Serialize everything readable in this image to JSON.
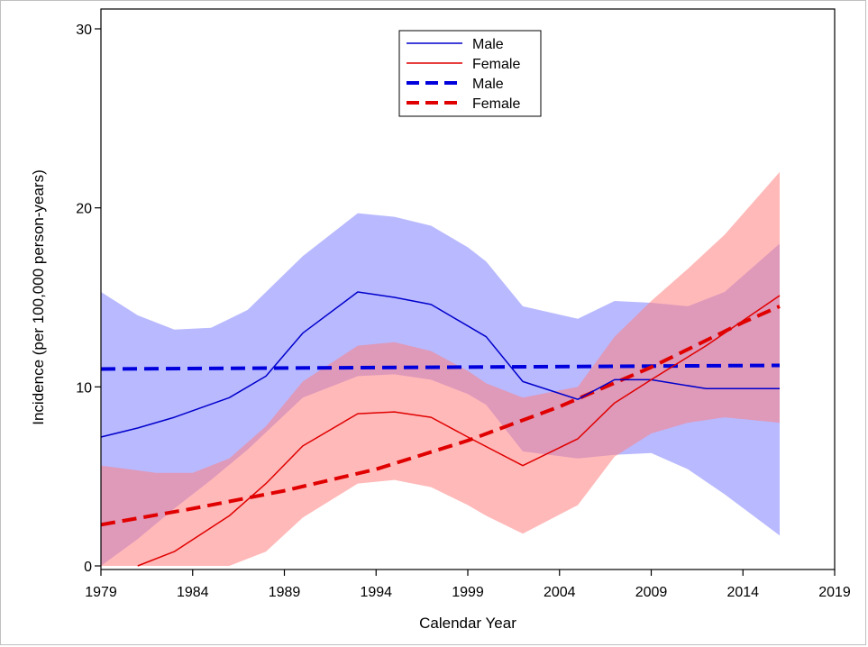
{
  "chart_data": {
    "type": "line",
    "title": "",
    "xlabel": "Calendar Year",
    "ylabel": "Incidence (per 100,000 person-years)",
    "xlim": [
      1979,
      2019
    ],
    "ylim": [
      0,
      30
    ],
    "x_ticks": [
      "1979",
      "1984",
      "1989",
      "1994",
      "1999",
      "2004",
      "2009",
      "2014",
      "2019"
    ],
    "y_ticks": [
      "0",
      "10",
      "20",
      "30"
    ],
    "legend_position": "top-center",
    "grid": false,
    "bands": [
      {
        "name": "Male",
        "color": "#8080ff",
        "x": [
          1979,
          1981,
          1983,
          1985,
          1987,
          1990,
          1993,
          1995,
          1997,
          1999,
          2000,
          2002,
          2005,
          2007,
          2009,
          2011,
          2013,
          2016
        ],
        "upper": [
          15.3,
          14.0,
          13.2,
          13.3,
          14.3,
          17.3,
          19.7,
          19.5,
          19.0,
          17.8,
          17.0,
          14.5,
          13.8,
          14.8,
          14.7,
          14.5,
          15.3,
          18.0
        ],
        "lower": [
          0.0,
          1.5,
          3.2,
          4.8,
          6.5,
          9.4,
          10.6,
          10.7,
          10.4,
          9.6,
          9.0,
          6.4,
          6.0,
          6.2,
          6.3,
          5.4,
          4.0,
          1.7
        ]
      },
      {
        "name": "Female",
        "color": "#ff8080",
        "x": [
          1979,
          1982,
          1984,
          1986,
          1988,
          1990,
          1993,
          1995,
          1997,
          1999,
          2000,
          2002,
          2005,
          2007,
          2009,
          2011,
          2013,
          2016
        ],
        "upper": [
          5.6,
          5.2,
          5.2,
          6.0,
          7.8,
          10.3,
          12.3,
          12.5,
          12.0,
          10.9,
          10.2,
          9.4,
          10.0,
          12.8,
          14.8,
          16.6,
          18.5,
          22.0
        ],
        "lower": [
          0.0,
          0.0,
          0.0,
          0.0,
          0.8,
          2.7,
          4.6,
          4.8,
          4.4,
          3.4,
          2.8,
          1.8,
          3.4,
          6.1,
          7.4,
          8.0,
          8.3,
          8.0
        ]
      }
    ],
    "series": [
      {
        "name": "Male",
        "style": "solid",
        "color": "#0000cc",
        "x": [
          1979,
          1981,
          1983,
          1986,
          1988,
          1990,
          1993,
          1995,
          1997,
          2000,
          2002,
          2005,
          2007,
          2009,
          2012,
          2016
        ],
        "values": [
          7.2,
          7.7,
          8.3,
          9.4,
          10.6,
          13.0,
          15.3,
          15.0,
          14.6,
          12.8,
          10.3,
          9.3,
          10.4,
          10.4,
          9.9,
          9.9
        ]
      },
      {
        "name": "Female",
        "style": "solid",
        "color": "#e00000",
        "x": [
          1981,
          1983,
          1986,
          1988,
          1990,
          1993,
          1995,
          1997,
          1999,
          2002,
          2005,
          2007,
          2009,
          2012,
          2016
        ],
        "values": [
          0.0,
          0.8,
          2.8,
          4.6,
          6.7,
          8.5,
          8.6,
          8.3,
          7.2,
          5.6,
          7.1,
          9.1,
          10.4,
          12.3,
          15.1
        ]
      },
      {
        "name": "Male",
        "style": "dashed",
        "color": "#0000dd",
        "x": [
          1979,
          2016
        ],
        "values": [
          11.0,
          11.2
        ]
      },
      {
        "name": "Female",
        "style": "dashed",
        "color": "#e00000",
        "x": [
          1979,
          1984,
          1989,
          1994,
          1999,
          2004,
          2009,
          2014,
          2016
        ],
        "values": [
          2.3,
          3.2,
          4.2,
          5.4,
          7.0,
          8.9,
          11.1,
          13.6,
          14.5
        ]
      }
    ]
  }
}
